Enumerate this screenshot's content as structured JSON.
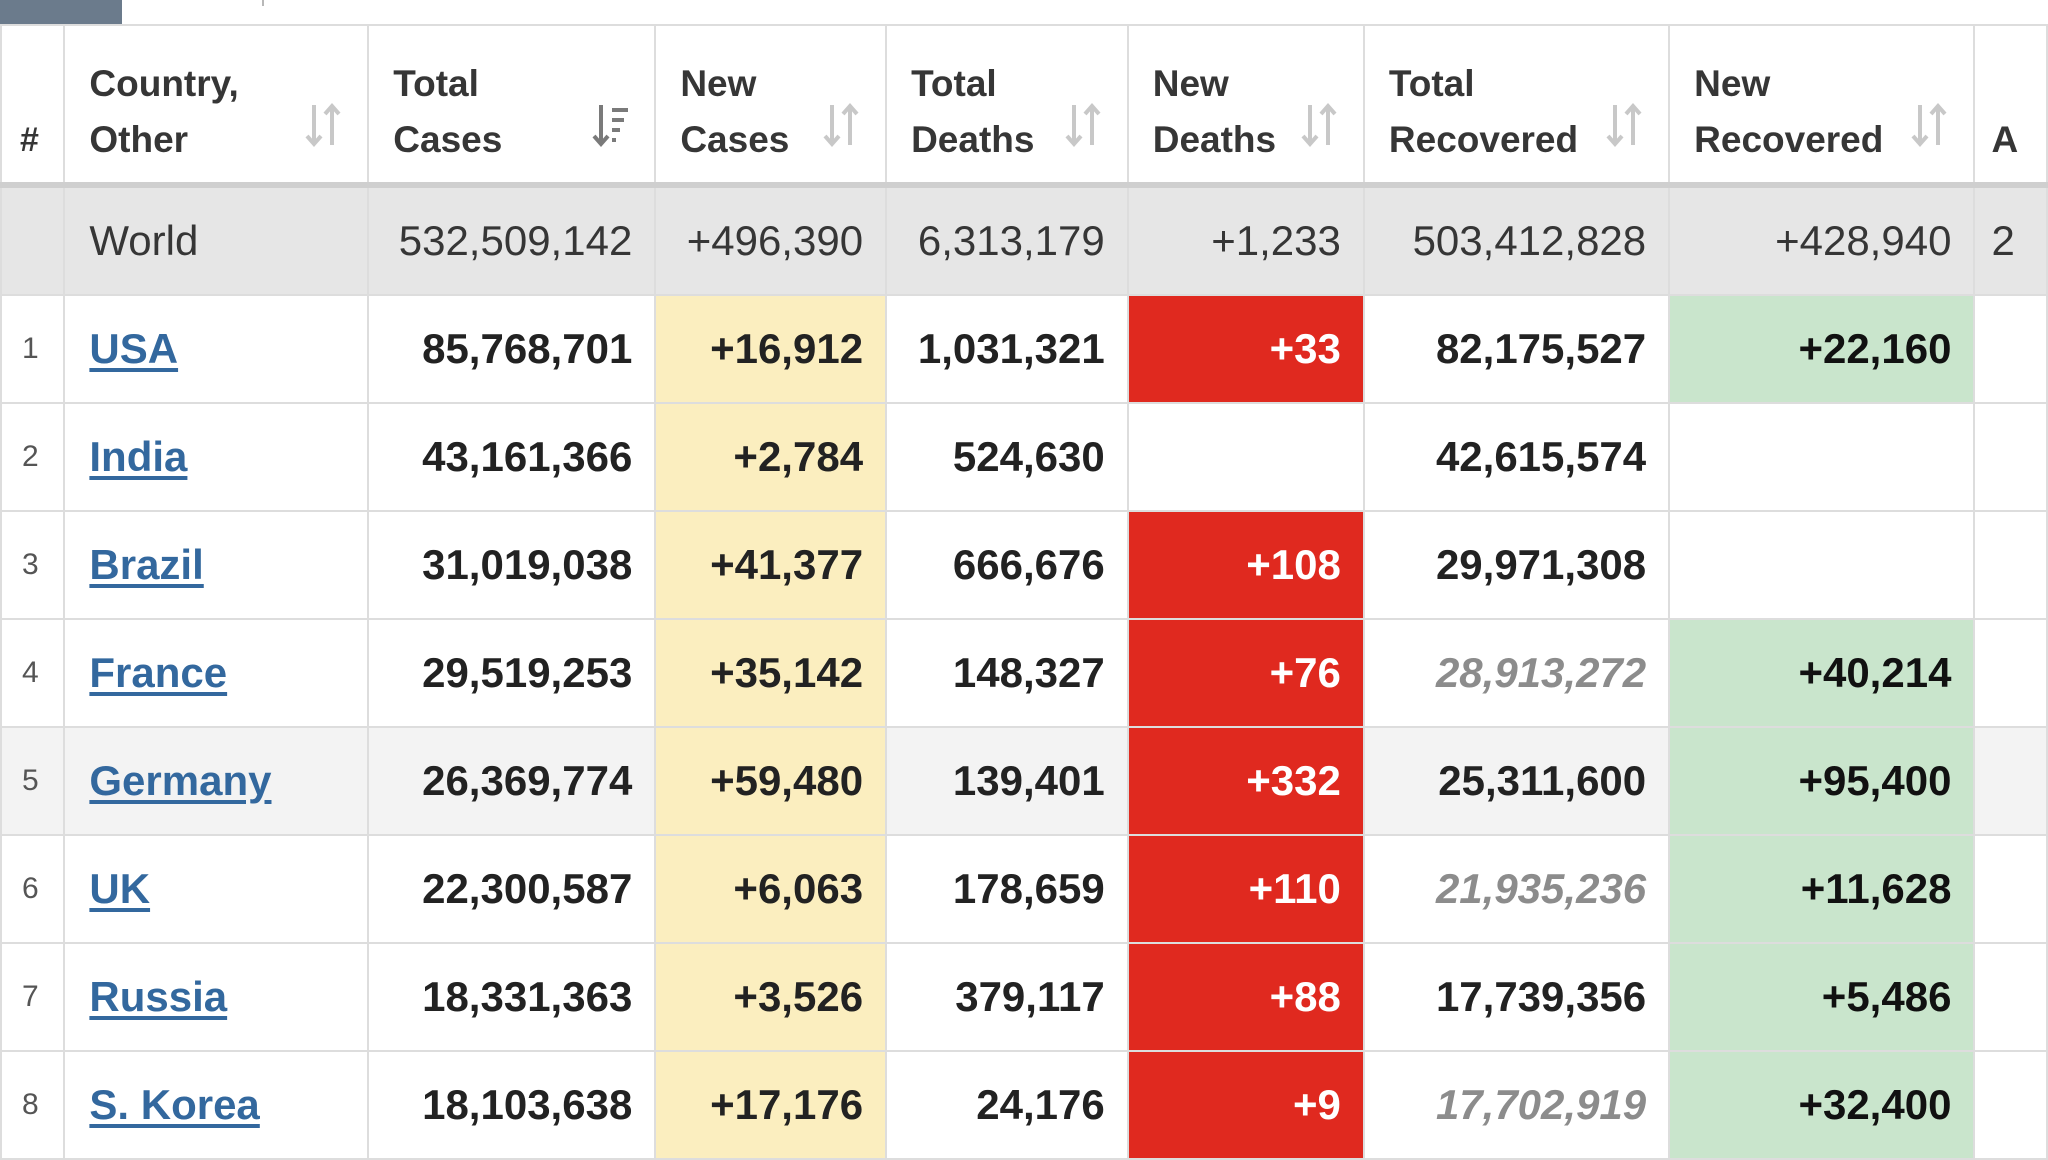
{
  "headers": {
    "hash": "#",
    "country": "Country, Other",
    "total_cases": "Total Cases",
    "new_cases": "New Cases",
    "total_deaths": "Total Deaths",
    "new_deaths": "New Deaths",
    "total_recovered": "Total Recovered",
    "new_recovered": "New Recovered",
    "cutoff": "A"
  },
  "world": {
    "country": "World",
    "total_cases": "532,509,142",
    "new_cases": "+496,390",
    "total_deaths": "6,313,179",
    "new_deaths": "+1,233",
    "total_recovered": "503,412,828",
    "new_recovered": "+428,940",
    "cutoff": "2"
  },
  "rows": [
    {
      "num": "1",
      "country": "USA",
      "total_cases": "85,768,701",
      "new_cases": "+16,912",
      "total_deaths": "1,031,321",
      "new_deaths": "+33",
      "total_recovered": "82,175,527",
      "new_recovered": "+22,160"
    },
    {
      "num": "2",
      "country": "India",
      "total_cases": "43,161,366",
      "new_cases": "+2,784",
      "total_deaths": "524,630",
      "new_deaths": "",
      "total_recovered": "42,615,574",
      "new_recovered": ""
    },
    {
      "num": "3",
      "country": "Brazil",
      "total_cases": "31,019,038",
      "new_cases": "+41,377",
      "total_deaths": "666,676",
      "new_deaths": "+108",
      "total_recovered": "29,971,308",
      "new_recovered": ""
    },
    {
      "num": "4",
      "country": "France",
      "total_cases": "29,519,253",
      "new_cases": "+35,142",
      "total_deaths": "148,327",
      "new_deaths": "+76",
      "total_recovered": "28,913,272",
      "new_recovered": "+40,214"
    },
    {
      "num": "5",
      "country": "Germany",
      "total_cases": "26,369,774",
      "new_cases": "+59,480",
      "total_deaths": "139,401",
      "new_deaths": "+332",
      "total_recovered": "25,311,600",
      "new_recovered": "+95,400"
    },
    {
      "num": "6",
      "country": "UK",
      "total_cases": "22,300,587",
      "new_cases": "+6,063",
      "total_deaths": "178,659",
      "new_deaths": "+110",
      "total_recovered": "21,935,236",
      "new_recovered": "+11,628"
    },
    {
      "num": "7",
      "country": "Russia",
      "total_cases": "18,331,363",
      "new_cases": "+3,526",
      "total_deaths": "379,117",
      "new_deaths": "+88",
      "total_recovered": "17,739,356",
      "new_recovered": "+5,486"
    },
    {
      "num": "8",
      "country": "S. Korea",
      "total_cases": "18,103,638",
      "new_cases": "+17,176",
      "total_deaths": "24,176",
      "new_deaths": "+9",
      "total_recovered": "17,702,919",
      "new_recovered": "+32,400"
    }
  ],
  "colors": {
    "new_cases_bg": "#fbeebf",
    "new_deaths_bg": "#e0291f",
    "new_recovered_bg": "#c9e5cc",
    "link": "#33689e",
    "world_bg": "#e6e6e6"
  },
  "icons": {
    "sort_default": "sort-arrows-icon",
    "sort_desc": "sort-descending-icon"
  }
}
